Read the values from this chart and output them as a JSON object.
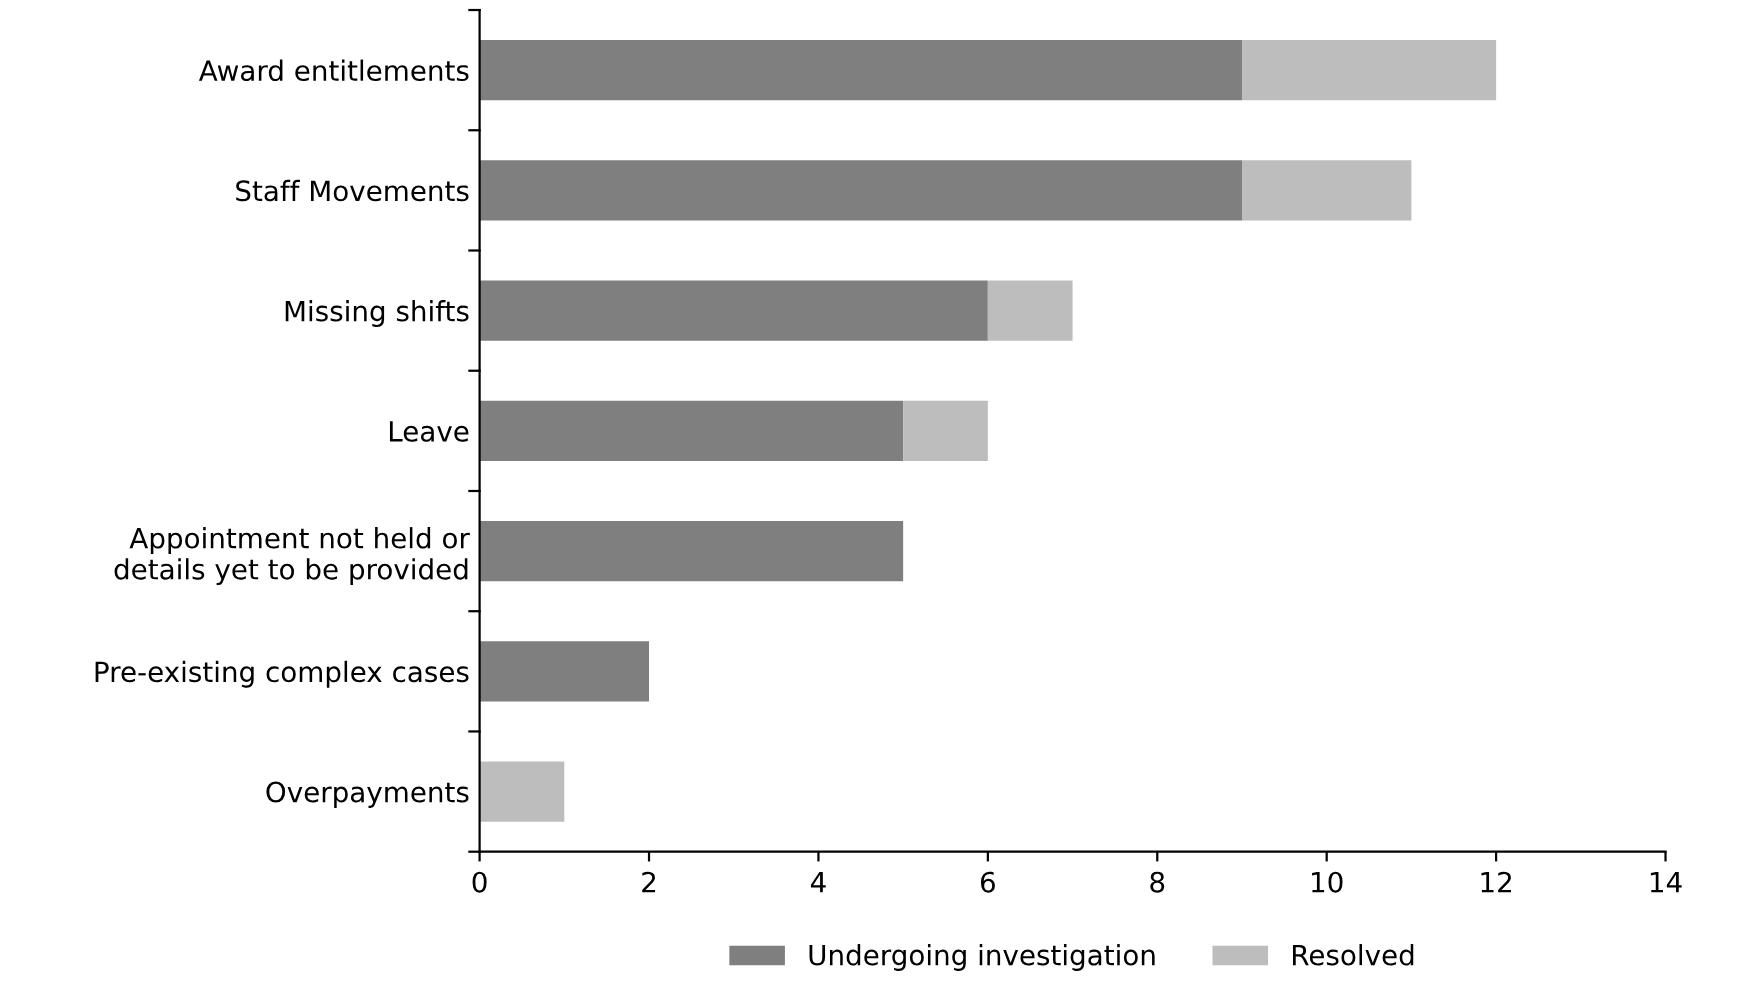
{
  "chart_data": {
    "type": "bar",
    "orientation": "horizontal",
    "stacked": true,
    "categories": [
      "Award entitlements",
      "Staff Movements",
      "Missing shifts",
      "Leave",
      "Appointment not held or\ndetails yet to be provided",
      "Pre-existing complex cases",
      "Overpayments"
    ],
    "series": [
      {
        "name": "Undergoing investigation",
        "color": "#7f7f7f",
        "values": [
          9,
          9,
          6,
          5,
          5,
          2,
          0
        ]
      },
      {
        "name": "Resolved",
        "color": "#bdbdbd",
        "values": [
          3,
          2,
          1,
          1,
          0,
          0,
          1
        ]
      }
    ],
    "xlim": [
      0,
      14
    ],
    "xticks": [
      0,
      2,
      4,
      6,
      8,
      10,
      12,
      14
    ],
    "grid": false,
    "legend": "bottom"
  }
}
